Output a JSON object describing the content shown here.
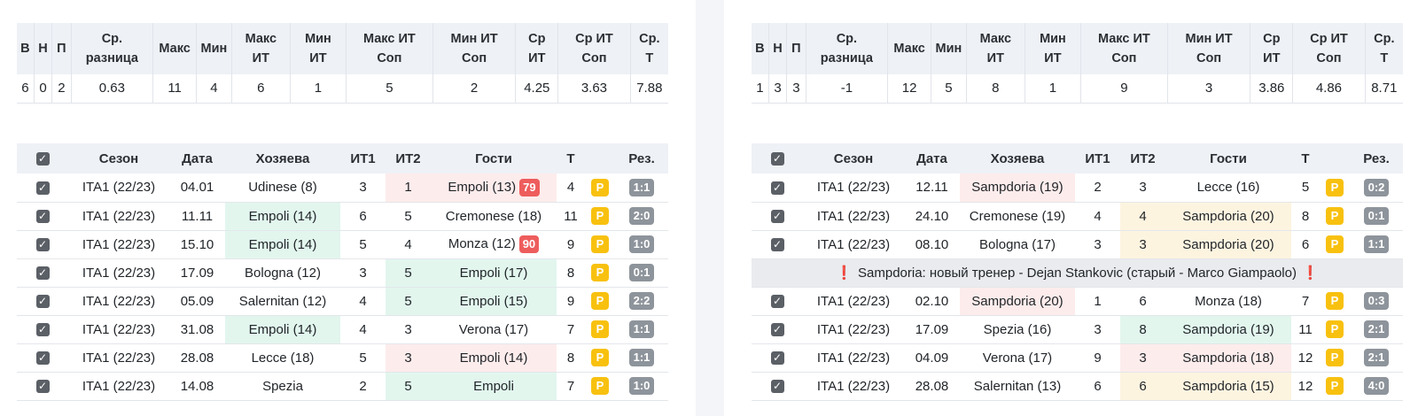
{
  "stats_headers": [
    "В",
    "Н",
    "П",
    "Ср.\nразница",
    "Макс",
    "Мин",
    "Макс\nИТ",
    "Мин\nИТ",
    "Макс ИТ\nСоп",
    "Мин ИТ\nСоп",
    "Ср\nИТ",
    "Ср ИТ\nСоп",
    "Ср.\nТ"
  ],
  "games_headers": {
    "season": "Сезон",
    "date": "Дата",
    "home": "Хозяева",
    "it1": "ИТ1",
    "it2": "ИТ2",
    "away": "Гости",
    "total": "Т",
    "result": "Рез."
  },
  "checkbox_glyph": "✓",
  "left": {
    "stats": [
      "6",
      "0",
      "2",
      "0.63",
      "11",
      "4",
      "6",
      "1",
      "5",
      "2",
      "4.25",
      "3.63",
      "7.88"
    ],
    "games": [
      {
        "season": "ITA1 (22/23)",
        "date": "04.01",
        "home": "Udinese (8)",
        "it1": "3",
        "it2": "1",
        "away": "Empoli (13)",
        "minute": "79",
        "total": "4",
        "p": "P",
        "result": "1:1",
        "hl": "away",
        "hlc": "loss"
      },
      {
        "season": "ITA1 (22/23)",
        "date": "11.11",
        "home": "Empoli (14)",
        "it1": "6",
        "it2": "5",
        "away": "Cremonese (18)",
        "minute": "",
        "total": "11",
        "p": "P",
        "result": "2:0",
        "hl": "home",
        "hlc": "win"
      },
      {
        "season": "ITA1 (22/23)",
        "date": "15.10",
        "home": "Empoli (14)",
        "it1": "5",
        "it2": "4",
        "away": "Monza (12)",
        "minute": "90",
        "total": "9",
        "p": "P",
        "result": "1:0",
        "hl": "home",
        "hlc": "win"
      },
      {
        "season": "ITA1 (22/23)",
        "date": "17.09",
        "home": "Bologna (12)",
        "it1": "3",
        "it2": "5",
        "away": "Empoli (17)",
        "minute": "",
        "total": "8",
        "p": "P",
        "result": "0:1",
        "hl": "away",
        "hlc": "win"
      },
      {
        "season": "ITA1 (22/23)",
        "date": "05.09",
        "home": "Salernitan (12)",
        "it1": "4",
        "it2": "5",
        "away": "Empoli (15)",
        "minute": "",
        "total": "9",
        "p": "P",
        "result": "2:2",
        "hl": "away",
        "hlc": "win"
      },
      {
        "season": "ITA1 (22/23)",
        "date": "31.08",
        "home": "Empoli (14)",
        "it1": "4",
        "it2": "3",
        "away": "Verona (17)",
        "minute": "",
        "total": "7",
        "p": "P",
        "result": "1:1",
        "hl": "home",
        "hlc": "win"
      },
      {
        "season": "ITA1 (22/23)",
        "date": "28.08",
        "home": "Lecce (18)",
        "it1": "5",
        "it2": "3",
        "away": "Empoli (14)",
        "minute": "",
        "total": "8",
        "p": "P",
        "result": "1:1",
        "hl": "away",
        "hlc": "loss"
      },
      {
        "season": "ITA1 (22/23)",
        "date": "14.08",
        "home": "Spezia",
        "it1": "2",
        "it2": "5",
        "away": "Empoli",
        "minute": "",
        "total": "7",
        "p": "P",
        "result": "1:0",
        "hl": "away",
        "hlc": "win"
      }
    ],
    "note": null
  },
  "right": {
    "stats": [
      "1",
      "3",
      "3",
      "-1",
      "12",
      "5",
      "8",
      "1",
      "9",
      "3",
      "3.86",
      "4.86",
      "8.71"
    ],
    "games": [
      {
        "season": "ITA1 (22/23)",
        "date": "12.11",
        "home": "Sampdoria (19)",
        "it1": "2",
        "it2": "3",
        "away": "Lecce (16)",
        "minute": "",
        "total": "5",
        "p": "P",
        "result": "0:2",
        "hl": "home",
        "hlc": "loss"
      },
      {
        "season": "ITA1 (22/23)",
        "date": "24.10",
        "home": "Cremonese (19)",
        "it1": "4",
        "it2": "4",
        "away": "Sampdoria (20)",
        "minute": "",
        "total": "8",
        "p": "P",
        "result": "0:1",
        "hl": "away",
        "hlc": "draw"
      },
      {
        "season": "ITA1 (22/23)",
        "date": "08.10",
        "home": "Bologna (17)",
        "it1": "3",
        "it2": "3",
        "away": "Sampdoria (20)",
        "minute": "",
        "total": "6",
        "p": "P",
        "result": "1:1",
        "hl": "away",
        "hlc": "draw"
      },
      {
        "season": "ITA1 (22/23)",
        "date": "02.10",
        "home": "Sampdoria (20)",
        "it1": "1",
        "it2": "6",
        "away": "Monza (18)",
        "minute": "",
        "total": "7",
        "p": "P",
        "result": "0:3",
        "hl": "home",
        "hlc": "loss"
      },
      {
        "season": "ITA1 (22/23)",
        "date": "17.09",
        "home": "Spezia (16)",
        "it1": "3",
        "it2": "8",
        "away": "Sampdoria (19)",
        "minute": "",
        "total": "11",
        "p": "P",
        "result": "2:1",
        "hl": "away",
        "hlc": "win"
      },
      {
        "season": "ITA1 (22/23)",
        "date": "04.09",
        "home": "Verona (17)",
        "it1": "9",
        "it2": "3",
        "away": "Sampdoria (18)",
        "minute": "",
        "total": "12",
        "p": "P",
        "result": "2:1",
        "hl": "away",
        "hlc": "loss"
      },
      {
        "season": "ITA1 (22/23)",
        "date": "28.08",
        "home": "Salernitan (13)",
        "it1": "6",
        "it2": "6",
        "away": "Sampdoria (15)",
        "minute": "",
        "total": "12",
        "p": "P",
        "result": "4:0",
        "hl": "away",
        "hlc": "draw"
      }
    ],
    "note": {
      "after_index": 2,
      "text": "Sampdoria: новый тренер - Dejan Stankovic (старый - Marco Giampaolo)",
      "mark": "❗"
    }
  }
}
